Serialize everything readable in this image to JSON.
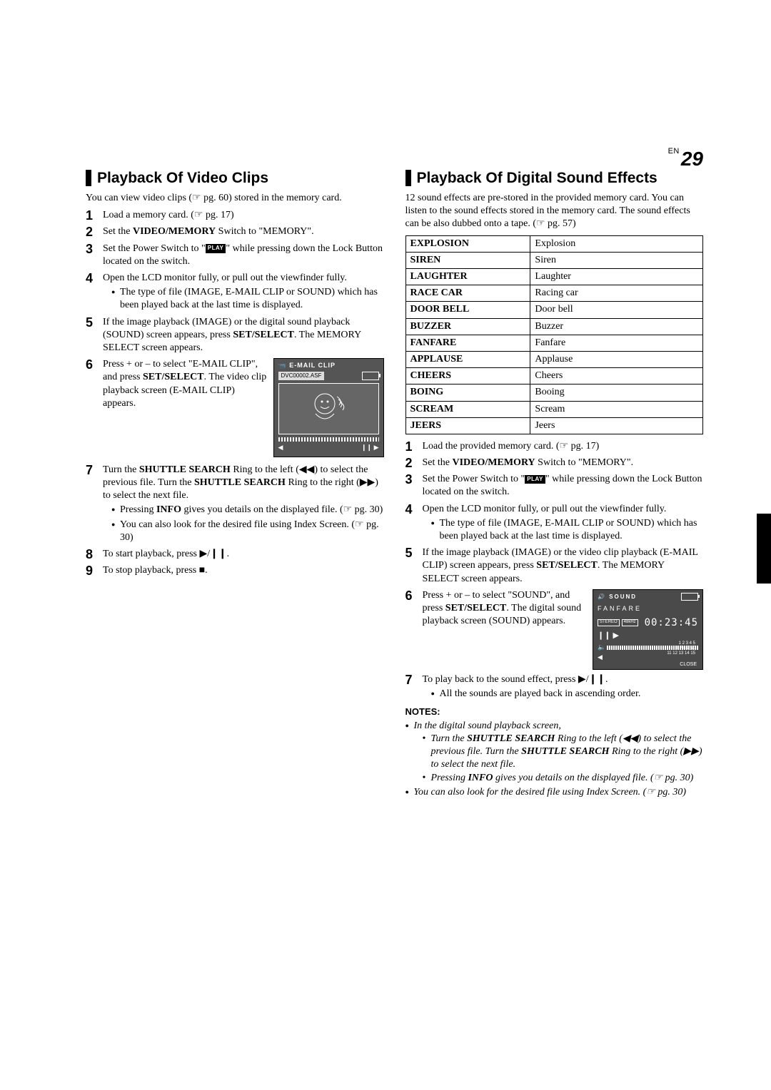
{
  "page": {
    "en_label": "EN",
    "number": "29"
  },
  "left": {
    "heading": "Playback Of Video Clips",
    "intro": "You can view video clips (☞ pg. 60) stored in the memory card.",
    "steps": {
      "s1": "Load a memory card. (☞ pg. 17)",
      "s2_pre": "Set the ",
      "s2_b": "VIDEO/MEMORY",
      "s2_post": " Switch to \"MEMORY\".",
      "s3_pre": "Set the Power Switch to \"",
      "s3_post": "\" while pressing down the Lock Button located on the switch.",
      "s4": "Open the LCD monitor fully, or pull out the viewfinder fully.",
      "s4_b1": "The type of file (IMAGE, E-MAIL CLIP or SOUND) which has been played back at the last time is displayed.",
      "s5_pre": "If the image playback (IMAGE) or the digital sound playback (SOUND) screen appears, press ",
      "s5_b": "SET/SELECT",
      "s5_post": ". The MEMORY SELECT screen appears.",
      "s6_pre": "Press + or – to select \"E-MAIL CLIP\", and press ",
      "s6_b": "SET/SELECT",
      "s6_post": ". The video clip playback screen (E-MAIL CLIP) appears.",
      "s7_pre": "Turn the ",
      "s7_b1": "SHUTTLE SEARCH",
      "s7_mid1": " Ring to the left (◀◀) to select the previous file. Turn the ",
      "s7_b2": "SHUTTLE SEARCH",
      "s7_mid2": " Ring to the right (▶▶) to select the next file.",
      "s7_sub1_pre": "Pressing ",
      "s7_sub1_b": "INFO",
      "s7_sub1_post": " gives you details on the displayed file. (☞ pg. 30)",
      "s7_sub2": "You can also look for the desired file using Index Screen. (☞ pg. 30)",
      "s8": "To start playback, press ▶/❙❙.",
      "s9": "To stop playback, press ■."
    },
    "figure": {
      "header": "E-MAIL CLIP",
      "filename": "DVC00002.ASF"
    }
  },
  "right": {
    "heading": "Playback Of Digital Sound Effects",
    "intro": "12 sound effects are pre-stored in the provided memory card. You can listen to the sound effects stored in the memory card. The sound effects can be also dubbed onto a tape. (☞ pg. 57)",
    "table": [
      [
        "EXPLOSION",
        "Explosion"
      ],
      [
        "SIREN",
        "Siren"
      ],
      [
        "LAUGHTER",
        "Laughter"
      ],
      [
        "RACE CAR",
        "Racing car"
      ],
      [
        "DOOR BELL",
        "Door bell"
      ],
      [
        "BUZZER",
        "Buzzer"
      ],
      [
        "FANFARE",
        "Fanfare"
      ],
      [
        "APPLAUSE",
        "Applause"
      ],
      [
        "CHEERS",
        "Cheers"
      ],
      [
        "BOING",
        "Booing"
      ],
      [
        "SCREAM",
        "Scream"
      ],
      [
        "JEERS",
        "Jeers"
      ]
    ],
    "steps": {
      "s1": "Load the provided memory card. (☞ pg. 17)",
      "s2_pre": "Set the ",
      "s2_b": "VIDEO/MEMORY",
      "s2_post": " Switch to \"MEMORY\".",
      "s3_pre": "Set the Power Switch to \"",
      "s3_post": "\" while pressing down the Lock Button located on the switch.",
      "s4": "Open the LCD monitor fully, or pull out the viewfinder fully.",
      "s4_b1": "The type of file (IMAGE, E-MAIL CLIP or SOUND) which has been played back at the last time is displayed.",
      "s5_pre": "If the image playback (IMAGE) or the video clip playback (E-MAIL CLIP) screen appears, press ",
      "s5_b": "SET/SELECT",
      "s5_post": ". The MEMORY SELECT screen appears.",
      "s6_pre": "Press + or – to select \"SOUND\", and press ",
      "s6_b": "SET/SELECT",
      "s6_post": ". The digital sound playback screen (SOUND) appears.",
      "s7": "To play back to the sound effect, press ▶/❙❙.",
      "s7_b1": "All the sounds are played back in ascending order."
    },
    "figure": {
      "header": "SOUND",
      "title": "FANFARE",
      "mode1": "STEREO",
      "mode2": "48kHz",
      "time": "00:23:45",
      "grid_r1": "1 2 3 4 5",
      "grid_r2": "6 7 8 9 10",
      "grid_r3": "11 12 13 14 15",
      "close": "CLOSE"
    },
    "notes": {
      "heading": "NOTES:",
      "n1": "In the digital sound playback screen,",
      "n1s1_pre": "Turn the ",
      "n1s1_b1": "SHUTTLE SEARCH",
      "n1s1_mid": " Ring to the left (◀◀) to select the previous file. Turn the ",
      "n1s1_b2": "SHUTTLE SEARCH",
      "n1s1_post": " Ring to the right (▶▶) to select the next file.",
      "n1s2_pre": "Pressing ",
      "n1s2_b": "INFO",
      "n1s2_post": " gives you details on the displayed file. (☞ pg. 30)",
      "n2": "You can also look for the desired file using Index Screen. (☞ pg. 30)"
    }
  },
  "play_label": "PLAY"
}
